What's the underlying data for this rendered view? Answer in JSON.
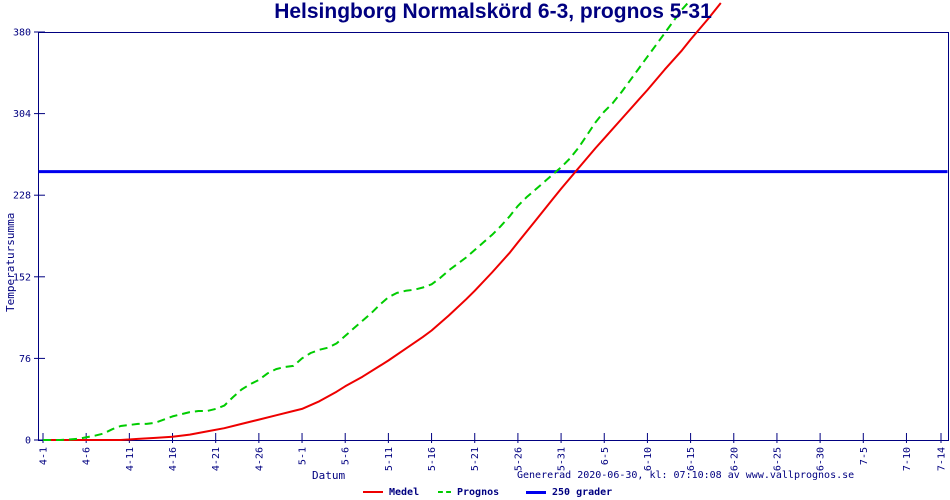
{
  "title": "Helsingborg Normalskörd 6-3, prognos 5-31",
  "footer": "Genererad 2020-06-30, kl: 07:10:08 av www.vallprognos.se",
  "colors": {
    "text": "#000080",
    "axis": "#000080",
    "background": "#ffffff",
    "medel": "#ee0000",
    "prognos": "#00cc00",
    "threshold": "#0000ee"
  },
  "chart_data": {
    "type": "line",
    "title": "Helsingborg Normalskörd 6-3, prognos 5-31",
    "xlabel": "Datum",
    "ylabel": "Temperatursumma",
    "ylim": [
      0,
      380
    ],
    "yticks": [
      0,
      76,
      152,
      228,
      304,
      380
    ],
    "grid": false,
    "legend_position": "bottom",
    "xticks": [
      {
        "label": "4-1",
        "day": 0
      },
      {
        "label": "4-6",
        "day": 5
      },
      {
        "label": "4-11",
        "day": 10
      },
      {
        "label": "4-16",
        "day": 15
      },
      {
        "label": "4-21",
        "day": 20
      },
      {
        "label": "4-26",
        "day": 25
      },
      {
        "label": "5-1",
        "day": 30
      },
      {
        "label": "5-6",
        "day": 35
      },
      {
        "label": "5-11",
        "day": 40
      },
      {
        "label": "5-16",
        "day": 45
      },
      {
        "label": "5-21",
        "day": 50
      },
      {
        "label": "5-26",
        "day": 55
      },
      {
        "label": "5-31",
        "day": 60
      },
      {
        "label": "6-5",
        "day": 65
      },
      {
        "label": "6-10",
        "day": 70
      },
      {
        "label": "6-15",
        "day": 75
      },
      {
        "label": "6-20",
        "day": 80
      },
      {
        "label": "6-25",
        "day": 85
      },
      {
        "label": "6-30",
        "day": 90
      },
      {
        "label": "7-5",
        "day": 95
      },
      {
        "label": "7-10",
        "day": 100
      },
      {
        "label": "7-14",
        "day": 104
      }
    ],
    "series": [
      {
        "name": "Medel",
        "color": "#ee0000",
        "style": "solid",
        "width": 2,
        "points": [
          [
            0,
            0
          ],
          [
            5,
            0
          ],
          [
            9,
            0
          ],
          [
            11,
            1
          ],
          [
            13,
            2
          ],
          [
            15,
            3
          ],
          [
            17,
            5
          ],
          [
            19,
            8
          ],
          [
            21,
            11
          ],
          [
            23,
            15
          ],
          [
            25,
            19
          ],
          [
            27,
            23
          ],
          [
            29,
            27
          ],
          [
            30,
            29
          ],
          [
            32,
            36
          ],
          [
            34,
            45
          ],
          [
            35,
            50
          ],
          [
            37,
            59
          ],
          [
            39,
            69
          ],
          [
            40,
            74
          ],
          [
            42,
            85
          ],
          [
            44,
            96
          ],
          [
            45,
            102
          ],
          [
            47,
            116
          ],
          [
            49,
            131
          ],
          [
            50,
            139
          ],
          [
            52,
            156
          ],
          [
            54,
            174
          ],
          [
            55,
            184
          ],
          [
            57,
            204
          ],
          [
            59,
            224
          ],
          [
            60,
            234
          ],
          [
            62,
            253
          ],
          [
            64,
            272
          ],
          [
            65,
            281
          ],
          [
            67,
            299
          ],
          [
            69,
            317
          ],
          [
            70,
            326
          ],
          [
            72,
            345
          ],
          [
            74,
            363
          ],
          [
            75,
            373
          ],
          [
            77,
            392
          ],
          [
            78.5,
            407
          ]
        ]
      },
      {
        "name": "Prognos",
        "color": "#00cc00",
        "style": "dashed",
        "width": 2,
        "points": [
          [
            0,
            0
          ],
          [
            2,
            0
          ],
          [
            4,
            1
          ],
          [
            6,
            4
          ],
          [
            7,
            6
          ],
          [
            8,
            10
          ],
          [
            9,
            13
          ],
          [
            10,
            14
          ],
          [
            11,
            15
          ],
          [
            12,
            15
          ],
          [
            13,
            16
          ],
          [
            14,
            19
          ],
          [
            15,
            22
          ],
          [
            16,
            24
          ],
          [
            17,
            26
          ],
          [
            18,
            27
          ],
          [
            19,
            27
          ],
          [
            20,
            29
          ],
          [
            21,
            32
          ],
          [
            22,
            40
          ],
          [
            23,
            47
          ],
          [
            24,
            52
          ],
          [
            25,
            56
          ],
          [
            26,
            62
          ],
          [
            27,
            66
          ],
          [
            28,
            68
          ],
          [
            29,
            69
          ],
          [
            30,
            76
          ],
          [
            31,
            81
          ],
          [
            32,
            84
          ],
          [
            33,
            86
          ],
          [
            34,
            90
          ],
          [
            35,
            97
          ],
          [
            36,
            104
          ],
          [
            37,
            111
          ],
          [
            38,
            118
          ],
          [
            39,
            126
          ],
          [
            40,
            133
          ],
          [
            41,
            137
          ],
          [
            42,
            139
          ],
          [
            43,
            140
          ],
          [
            44,
            142
          ],
          [
            45,
            145
          ],
          [
            46,
            151
          ],
          [
            47,
            158
          ],
          [
            48,
            164
          ],
          [
            49,
            170
          ],
          [
            50,
            177
          ],
          [
            51,
            184
          ],
          [
            52,
            191
          ],
          [
            53,
            199
          ],
          [
            54,
            208
          ],
          [
            55,
            218
          ],
          [
            56,
            226
          ],
          [
            57,
            233
          ],
          [
            58,
            240
          ],
          [
            59,
            247
          ],
          [
            60,
            254
          ],
          [
            61,
            262
          ],
          [
            62,
            272
          ],
          [
            63,
            284
          ],
          [
            64,
            296
          ],
          [
            65,
            306
          ],
          [
            66,
            314
          ],
          [
            67,
            324
          ],
          [
            68,
            335
          ],
          [
            69,
            346
          ],
          [
            70,
            357
          ],
          [
            71,
            368
          ],
          [
            72,
            379
          ],
          [
            73,
            390
          ],
          [
            74,
            401
          ],
          [
            75,
            410
          ]
        ]
      },
      {
        "name": "250 grader",
        "color": "#0000ee",
        "style": "solid",
        "width": 3,
        "threshold_value": 250
      }
    ]
  }
}
